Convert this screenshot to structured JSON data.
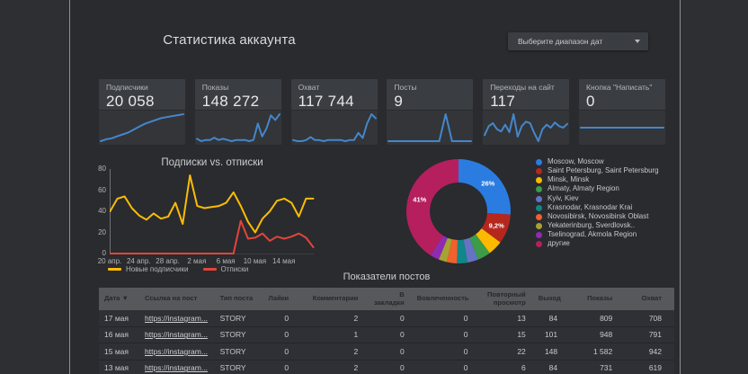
{
  "header": {
    "title": "Статистика аккаунта",
    "date_range_label": "Выберите диапазон дат"
  },
  "accent_colors": {
    "sparkline_blue": "#4586ca",
    "subscribers_yellow": "#fbbc04",
    "unsubscribes_red": "#e3453a"
  },
  "kpis": [
    {
      "label": "Подписчики",
      "value": "20 058",
      "spark": [
        10,
        12,
        13,
        15,
        17,
        19,
        22,
        25,
        28,
        30,
        32,
        34,
        35,
        36,
        37,
        38
      ]
    },
    {
      "label": "Показы",
      "value": "148 272",
      "spark": [
        7,
        5,
        6,
        6,
        8,
        6,
        7,
        6,
        5,
        6,
        6,
        6,
        5,
        6,
        20,
        9,
        16,
        27,
        23,
        28
      ]
    },
    {
      "label": "Охват",
      "value": "117 744",
      "spark": [
        6,
        5,
        5,
        6,
        9,
        6,
        6,
        5,
        6,
        6,
        6,
        6,
        5,
        6,
        6,
        13,
        8,
        22,
        31,
        27
      ]
    },
    {
      "label": "Посты",
      "value": "9",
      "spark": [
        0.5,
        0.5,
        0.5,
        0.5,
        0.5,
        0.5,
        0.5,
        0.5,
        0.5,
        28,
        0.5,
        0.5,
        0.5,
        0.5
      ]
    },
    {
      "label": "Переходы на сайт",
      "value": "117",
      "spark": [
        10,
        22,
        26,
        18,
        15,
        24,
        14,
        38,
        8,
        22,
        28,
        26,
        13,
        2,
        18,
        24,
        20,
        27,
        22,
        20,
        25
      ]
    },
    {
      "label": "Кнопка \"Написать\"",
      "value": "0",
      "spark": [
        5,
        5
      ]
    }
  ],
  "chart_data": [
    {
      "type": "line",
      "title": "Подписки vs. отписки",
      "x_ticks": [
        "20 апр.",
        "24 апр.",
        "28 апр.",
        "2 мая",
        "6 мая",
        "10 мая",
        "14 мая"
      ],
      "x_tick_positions": [
        0,
        4,
        8,
        12,
        16,
        20,
        24
      ],
      "y_ticks": [
        0,
        20,
        40,
        60,
        80
      ],
      "ylim": [
        0,
        80
      ],
      "grid": false,
      "legend_position": "bottom",
      "series": [
        {
          "name": "Новые подписчики",
          "color": "#fbbc04",
          "values": [
            40,
            52,
            54,
            43,
            36,
            32,
            38,
            33,
            35,
            48,
            28,
            74,
            45,
            43,
            44,
            45,
            48,
            58,
            45,
            30,
            20,
            33,
            40,
            50,
            52,
            48,
            35,
            52,
            52
          ]
        },
        {
          "name": "Отписки",
          "color": "#e3453a",
          "values": [
            0,
            0,
            0,
            0,
            0,
            0,
            0,
            0,
            0,
            0,
            0,
            0,
            0,
            0,
            0,
            0,
            0,
            0,
            31,
            14,
            15,
            19,
            12,
            16,
            14,
            16,
            19,
            15,
            6
          ]
        }
      ]
    },
    {
      "type": "pie",
      "donut": true,
      "legend_position": "right",
      "slices": [
        {
          "label": "Moscow, Moscow",
          "value": 26,
          "color": "#2b7ce0",
          "pct_label": "26%"
        },
        {
          "label": "Saint Petersburg, Saint Petersburg",
          "value": 9.2,
          "color": "#b5271d",
          "pct_label": "9,2%"
        },
        {
          "label": "Minsk, Minsk",
          "value": 4.6,
          "color": "#fcb900"
        },
        {
          "label": "Almaty, Almaty Region",
          "value": 4.0,
          "color": "#3d9c47"
        },
        {
          "label": "Kyiv, Kiev",
          "value": 3.4,
          "color": "#6673c4"
        },
        {
          "label": "Krasnodar, Krasnodar Krai",
          "value": 3.3,
          "color": "#12878a"
        },
        {
          "label": "Novosibirsk, Novosibirsk Oblast",
          "value": 3.1,
          "color": "#f0612c"
        },
        {
          "label": "Yekaterinburg, Sverdlovsk..",
          "value": 2.6,
          "color": "#a6a233"
        },
        {
          "label": "Tselinograd, Akmola Region",
          "value": 2.8,
          "color": "#8f2bb3"
        },
        {
          "label": "другие",
          "value": 41.0,
          "color": "#b51f5e",
          "pct_label": "41%"
        }
      ]
    }
  ],
  "table": {
    "title": "Показатели постов",
    "sort_indicator": "▼",
    "columns": [
      "Дата",
      "Ссылка на пост",
      "Тип поста",
      "Лайки",
      "Комментарии",
      "В закладки",
      "Вовлеченность",
      "Повторный просмотр",
      "Выход",
      "Показы",
      "Охват"
    ],
    "rows": [
      [
        "17 мая",
        "https://instagram...",
        "STORY",
        "0",
        "2",
        "0",
        "0",
        "13",
        "84",
        "809",
        "708"
      ],
      [
        "16 мая",
        "https://instagram...",
        "STORY",
        "0",
        "1",
        "0",
        "0",
        "15",
        "101",
        "948",
        "791"
      ],
      [
        "15 мая",
        "https://instagram...",
        "STORY",
        "0",
        "2",
        "0",
        "0",
        "22",
        "148",
        "1 582",
        "942"
      ],
      [
        "13 мая",
        "https://instagram...",
        "STORY",
        "0",
        "2",
        "0",
        "0",
        "6",
        "84",
        "731",
        "619"
      ]
    ]
  }
}
